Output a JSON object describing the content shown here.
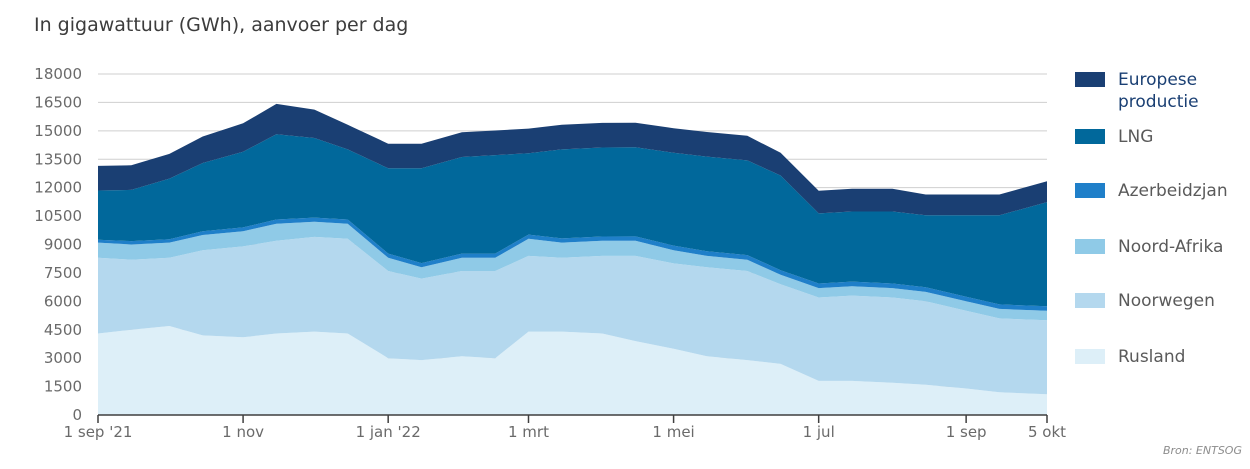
{
  "subtitle": "In gigawattuur (GWh), aanvoer per dag",
  "source": "Bron: ENTSOG",
  "colors": {
    "europese_productie": "#1a3f73",
    "lng": "#01689b",
    "azerbeidzjan": "#1f7fc9",
    "noord_afrika": "#8fcae7",
    "noorwegen": "#b4d8ee",
    "rusland": "#ddeff8",
    "grid": "#cfcfcf",
    "axis": "#3f3f3f",
    "legend_text_dark": "#1a3f73",
    "legend_text": "#5a5a5a"
  },
  "chart_data": {
    "type": "area",
    "stacked": true,
    "ylabel": "In gigawattuur (GWh), aanvoer per dag",
    "ylim": [
      0,
      18000
    ],
    "yticks": [
      0,
      1500,
      3000,
      4500,
      6000,
      7500,
      9000,
      10500,
      12000,
      13500,
      15000,
      16500,
      18000
    ],
    "xlim": [
      "2021-09-01",
      "2022-10-05"
    ],
    "xticks": [
      {
        "date": "2021-09-01",
        "label": "1 sep '21"
      },
      {
        "date": "2021-11-01",
        "label": "1 nov"
      },
      {
        "date": "2022-01-01",
        "label": "1 jan '22"
      },
      {
        "date": "2022-03-01",
        "label": "1 mrt"
      },
      {
        "date": "2022-05-01",
        "label": "1 mei"
      },
      {
        "date": "2022-07-01",
        "label": "1 jul"
      },
      {
        "date": "2022-09-01",
        "label": "1 sep"
      },
      {
        "date": "2022-10-05",
        "label": "5 okt"
      }
    ],
    "grid": true,
    "legend_position": "right",
    "x": [
      "2021-09-01",
      "2021-09-15",
      "2021-10-01",
      "2021-10-15",
      "2021-11-01",
      "2021-11-15",
      "2021-12-01",
      "2021-12-15",
      "2022-01-01",
      "2022-01-15",
      "2022-02-01",
      "2022-02-15",
      "2022-03-01",
      "2022-03-15",
      "2022-04-01",
      "2022-04-15",
      "2022-05-01",
      "2022-05-15",
      "2022-06-01",
      "2022-06-15",
      "2022-07-01",
      "2022-07-15",
      "2022-08-01",
      "2022-08-15",
      "2022-09-01",
      "2022-09-15",
      "2022-10-05"
    ],
    "series": [
      {
        "name": "Rusland",
        "color_key": "rusland",
        "values": [
          4300,
          4500,
          4700,
          4200,
          4100,
          4300,
          4400,
          4300,
          3000,
          2900,
          3100,
          3000,
          4400,
          4400,
          4300,
          3900,
          3500,
          3100,
          2900,
          2700,
          1800,
          1800,
          1700,
          1600,
          1400,
          1200,
          1100
        ]
      },
      {
        "name": "Noorwegen",
        "color_key": "noorwegen",
        "values": [
          4000,
          3700,
          3600,
          4500,
          4800,
          4900,
          5000,
          5000,
          4600,
          4300,
          4500,
          4600,
          4000,
          3900,
          4100,
          4500,
          4500,
          4700,
          4700,
          4200,
          4400,
          4500,
          4500,
          4400,
          4100,
          3900,
          3900
        ]
      },
      {
        "name": "Noord-Afrika",
        "color_key": "noord_afrika",
        "values": [
          800,
          800,
          800,
          800,
          800,
          900,
          800,
          800,
          700,
          600,
          700,
          700,
          900,
          800,
          800,
          800,
          700,
          600,
          600,
          500,
          500,
          500,
          500,
          500,
          500,
          500,
          500
        ]
      },
      {
        "name": "Azerbeidzjan",
        "color_key": "azerbeidzjan",
        "values": [
          150,
          180,
          180,
          200,
          200,
          220,
          220,
          220,
          220,
          220,
          220,
          220,
          220,
          220,
          220,
          230,
          240,
          240,
          240,
          240,
          240,
          240,
          240,
          240,
          240,
          240,
          240
        ]
      },
      {
        "name": "LNG",
        "color_key": "lng",
        "values": [
          2600,
          2700,
          3200,
          3600,
          4000,
          4500,
          4200,
          3700,
          4500,
          5000,
          5100,
          5200,
          4300,
          4700,
          4700,
          4700,
          4900,
          5000,
          5000,
          5000,
          3700,
          3700,
          3800,
          3800,
          4300,
          4700,
          5500
        ]
      },
      {
        "name": "Europese productie",
        "color_key": "europese_productie",
        "values": [
          1300,
          1300,
          1300,
          1400,
          1500,
          1600,
          1500,
          1300,
          1300,
          1300,
          1300,
          1300,
          1300,
          1300,
          1300,
          1300,
          1300,
          1300,
          1300,
          1200,
          1200,
          1200,
          1200,
          1100,
          1100,
          1100,
          1100
        ]
      }
    ],
    "legend": [
      {
        "label": "Europese\nproductie",
        "color_key": "europese_productie"
      },
      {
        "label": "LNG",
        "color_key": "lng"
      },
      {
        "label": "Azerbeidzjan",
        "color_key": "azerbeidzjan"
      },
      {
        "label": "Noord-Afrika",
        "color_key": "noord_afrika"
      },
      {
        "label": "Noorwegen",
        "color_key": "noorwegen"
      },
      {
        "label": "Rusland",
        "color_key": "rusland"
      }
    ]
  }
}
